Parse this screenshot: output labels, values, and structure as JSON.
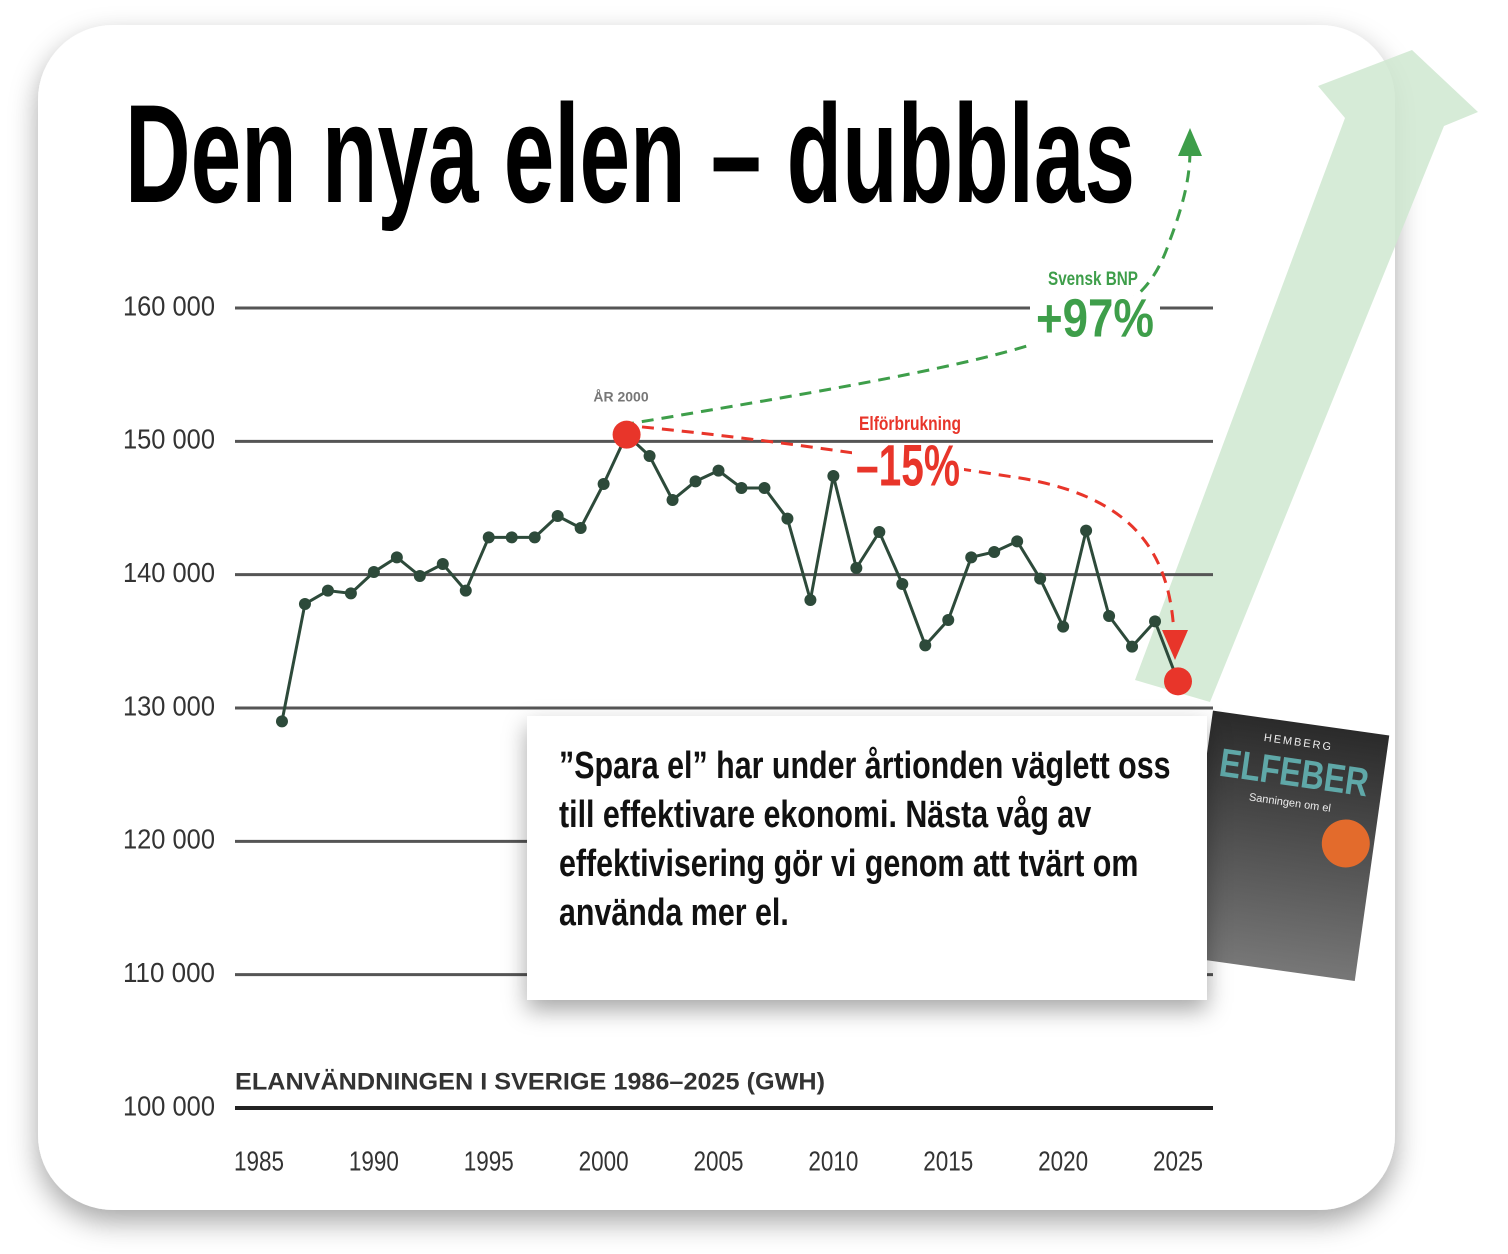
{
  "chart_data": {
    "type": "line",
    "title": "Den nya elen – dubblas",
    "subtitle": "ELANVÄNDNINGEN I SVERIGE 1986–2025 (GWH)",
    "x": [
      1986,
      1987,
      1988,
      1989,
      1990,
      1991,
      1992,
      1993,
      1994,
      1995,
      1996,
      1997,
      1998,
      1999,
      2000,
      2001,
      2002,
      2003,
      2004,
      2005,
      2006,
      2007,
      2008,
      2009,
      2010,
      2011,
      2012,
      2013,
      2014,
      2015,
      2016,
      2017,
      2018,
      2019,
      2020,
      2021,
      2022,
      2023,
      2024,
      2025
    ],
    "values": [
      129000,
      137800,
      138800,
      138600,
      140200,
      141300,
      139900,
      140800,
      138800,
      142800,
      142800,
      142800,
      144400,
      143500,
      146800,
      150500,
      148900,
      145600,
      147000,
      147800,
      146500,
      146500,
      144200,
      138100,
      147400,
      140500,
      143200,
      139300,
      134700,
      136600,
      141300,
      141700,
      142500,
      139700,
      136100,
      143300,
      136900,
      134600,
      136500,
      132000
    ],
    "color": "#2d4a3a",
    "highlight_color": "#e8352a",
    "highlight_x": [
      2001,
      2025
    ],
    "xlim": [
      1985,
      2025
    ],
    "xticks": [
      1985,
      1990,
      1995,
      2000,
      2005,
      2010,
      2015,
      2020,
      2025
    ],
    "ylim": [
      100000,
      160000
    ],
    "yticks": [
      {
        "value": 100000,
        "label": "100 000"
      },
      {
        "value": 110000,
        "label": "110 000"
      },
      {
        "value": 120000,
        "label": "120 000"
      },
      {
        "value": 130000,
        "label": "130 000"
      },
      {
        "value": 140000,
        "label": "140 000"
      },
      {
        "value": 150000,
        "label": "150 000"
      },
      {
        "value": 160000,
        "label": "160 000"
      }
    ],
    "grid": true,
    "annotations": {
      "year_label": "ÅR 2000",
      "gdp_label": "Svensk BNP",
      "gdp_change": "+97%",
      "use_label": "Elförbrukning",
      "use_change": "–15%"
    }
  },
  "caption": "”Spara el” har under årtionden väglett oss till effektivare ekonomi. Nästa våg av effektivisering gör vi genom att tvärt om använda mer el.",
  "book": {
    "author": "HEMBERG",
    "title": "ELFEBER",
    "subtitle": "Sanningen om el"
  }
}
